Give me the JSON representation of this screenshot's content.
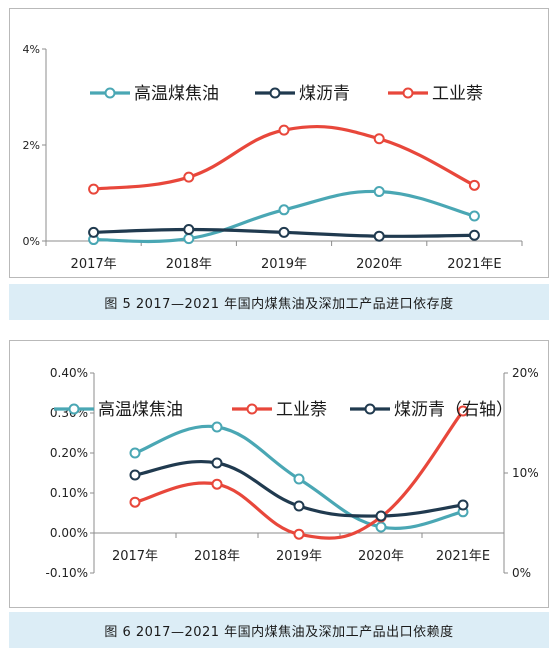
{
  "figures": [
    {
      "caption": "图 5 2017—2021 年国内煤焦油及深加工产品进口依存度"
    },
    {
      "caption": "图 6 2017—2021 年国内煤焦油及深加工产品出口依赖度"
    }
  ],
  "chart_data": [
    {
      "type": "line",
      "title": "",
      "categories": [
        "2017年",
        "2018年",
        "2019年",
        "2020年",
        "2021年E"
      ],
      "ylim": [
        0,
        4
      ],
      "yticks": [
        "0%",
        "2%",
        "4%"
      ],
      "ytick_values": [
        0,
        2,
        4
      ],
      "unit": "%",
      "grid": false,
      "legend_position": "top",
      "smooth": true,
      "series": [
        {
          "name": "高温煤焦油",
          "color": "#4aa7b4",
          "values": [
            0.03,
            0.05,
            0.65,
            1.03,
            0.52
          ]
        },
        {
          "name": "煤沥青",
          "color": "#203a4f",
          "values": [
            0.18,
            0.24,
            0.18,
            0.1,
            0.12
          ]
        },
        {
          "name": "工业萘",
          "color": "#e8473b",
          "values": [
            1.08,
            1.33,
            2.31,
            2.13,
            1.16
          ]
        }
      ]
    },
    {
      "type": "line",
      "title": "",
      "categories": [
        "2017年",
        "2018年",
        "2019年",
        "2020年",
        "2021年E"
      ],
      "ylim": [
        -0.1,
        0.4
      ],
      "yticks": [
        "-0.10%",
        "0.00%",
        "0.10%",
        "0.20%",
        "0.30%",
        "0.40%"
      ],
      "ytick_values": [
        -0.1,
        0,
        0.1,
        0.2,
        0.3,
        0.4
      ],
      "y2lim": [
        0,
        20
      ],
      "y2ticks": [
        "0%",
        "10%",
        "20%"
      ],
      "y2tick_values": [
        0,
        10,
        20
      ],
      "grid": false,
      "legend_position": "top",
      "smooth": true,
      "series": [
        {
          "name": "高温煤焦油",
          "color": "#4aa7b4",
          "axis": "left",
          "values": [
            0.2,
            0.265,
            0.135,
            0.015,
            0.053
          ]
        },
        {
          "name": "工业萘",
          "color": "#e8473b",
          "axis": "left",
          "values": [
            0.077,
            0.122,
            -0.003,
            0.04,
            0.305
          ]
        },
        {
          "name": "煤沥青（右轴）",
          "color": "#203a4f",
          "axis": "right",
          "values": [
            9.8,
            11.0,
            6.7,
            5.7,
            6.8
          ]
        }
      ]
    }
  ]
}
